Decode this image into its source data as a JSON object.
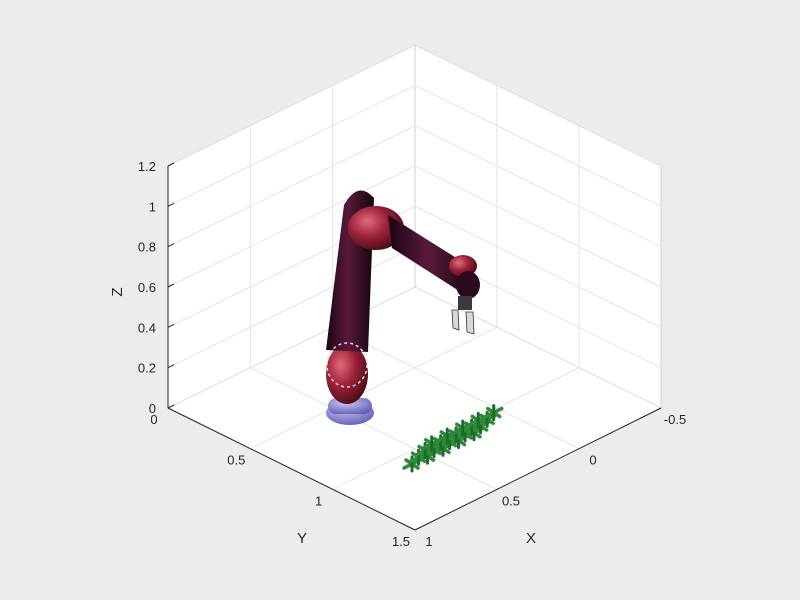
{
  "plot": {
    "type": "3d-robot-scene",
    "axes": {
      "x": {
        "label": "X",
        "ticks": [
          "-0.5",
          "0",
          "0.5",
          "1"
        ]
      },
      "y": {
        "label": "Y",
        "ticks": [
          "0",
          "0.5",
          "1",
          "1.5"
        ]
      },
      "z": {
        "label": "Z",
        "ticks": [
          "0",
          "0.2",
          "0.4",
          "0.6",
          "0.8",
          "1",
          "1.2"
        ]
      }
    },
    "grid": true,
    "box": "three back walls with gridlines",
    "background_color": "#ececec",
    "axes_color": "#ffffff"
  },
  "scene": {
    "robot": {
      "link_color": "#3a0d26",
      "joint_color": "#8c1e34",
      "base_color": "#8a86d6",
      "gripper_color": "#d8d8d8"
    },
    "objects": {
      "name": "green parts grid",
      "color": "#2e8b3a",
      "rows": 2,
      "cols": 5
    }
  }
}
